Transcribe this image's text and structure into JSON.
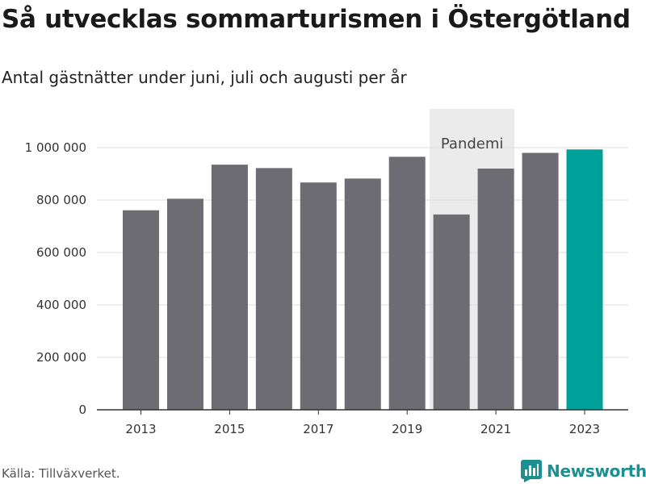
{
  "title": "Så utvecklas sommarturismen i Östergötland",
  "subtitle": "Antal gästnätter under juni, juli och augusti per år",
  "source": "Källa: Tillväxverket.",
  "logo": {
    "text": "Newsworthy",
    "icon": "bar-chart-logo-icon",
    "color": "#1e8f90"
  },
  "colors": {
    "bar": "#6d6c72",
    "highlight": "#00a09a",
    "band": "#ebebeb",
    "grid": "#dddddd"
  },
  "chart_data": {
    "type": "bar",
    "categories": [
      "2013",
      "2014",
      "2015",
      "2016",
      "2017",
      "2018",
      "2019",
      "2020",
      "2021",
      "2022",
      "2023"
    ],
    "values": [
      761000,
      805000,
      935000,
      922000,
      867000,
      882000,
      965000,
      745000,
      920000,
      980000,
      993000
    ],
    "highlight_category": "2023",
    "x_tick_labels": [
      "2013",
      "2015",
      "2017",
      "2019",
      "2021",
      "2023"
    ],
    "y_ticks": [
      0,
      200000,
      400000,
      600000,
      800000,
      1000000
    ],
    "y_tick_labels": [
      "0",
      "200 000",
      "400 000",
      "600 000",
      "800 000",
      "1 000 000"
    ],
    "ylim": [
      0,
      1150000
    ],
    "annotation": {
      "label": "Pandemi",
      "category": "2020"
    },
    "grid": true,
    "xlabel": "",
    "ylabel": ""
  }
}
